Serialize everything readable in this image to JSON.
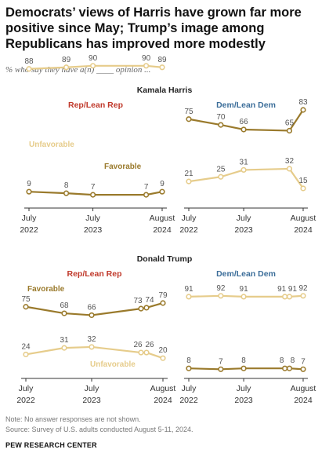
{
  "title": "Democrats’ views of Harris have grown far more positive since May; Trump’s image among Republicans has improved more modestly",
  "subtitle": "% who say they have a(n) ____ opinion ...",
  "note": "Note: No answer responses are not shown.",
  "source": "Source: Survey of U.S. adults conducted August 5-11, 2024.",
  "credit": "PEW RESEARCH CENTER",
  "colors": {
    "favorable": "#9a7a2c",
    "unfavorable": "#e6cc8b",
    "rep_label": "#c0392b",
    "dem_label": "#3c6e9a",
    "axis": "#333333"
  },
  "chart_data": [
    {
      "type": "line",
      "section": "Kamala Harris",
      "panel": "Rep/Lean Rep",
      "x": [
        "2022-07",
        "2023-02",
        "2023-07",
        "2024-05",
        "2024-08"
      ],
      "tick_labels": [
        [
          "July",
          "2022"
        ],
        [
          "July",
          "2023"
        ],
        [
          "August",
          "2024"
        ]
      ],
      "series": [
        {
          "name": "Unfavorable",
          "values": [
            88,
            89,
            90,
            90,
            89
          ]
        },
        {
          "name": "Favorable",
          "values": [
            9,
            8,
            7,
            7,
            9
          ]
        }
      ],
      "ylim": [
        0,
        100
      ]
    },
    {
      "type": "line",
      "section": "Kamala Harris",
      "panel": "Dem/Lean Dem",
      "x": [
        "2022-07",
        "2023-02",
        "2023-07",
        "2024-05",
        "2024-08"
      ],
      "tick_labels": [
        [
          "July",
          "2022"
        ],
        [
          "July",
          "2023"
        ],
        [
          "August",
          "2024"
        ]
      ],
      "series": [
        {
          "name": "Favorable",
          "values": [
            75,
            70,
            66,
            65,
            83
          ]
        },
        {
          "name": "Unfavorable",
          "values": [
            21,
            25,
            31,
            32,
            15
          ]
        }
      ],
      "ylim": [
        0,
        100
      ]
    },
    {
      "type": "line",
      "section": "Donald Trump",
      "panel": "Rep/Lean Rep",
      "x": [
        "2022-07",
        "2023-02",
        "2023-07",
        "2024-04",
        "2024-05",
        "2024-08"
      ],
      "tick_labels": [
        [
          "July",
          "2022"
        ],
        [
          "July",
          "2023"
        ],
        [
          "August",
          "2024"
        ]
      ],
      "series": [
        {
          "name": "Favorable",
          "values": [
            75,
            68,
            66,
            73,
            74,
            79
          ]
        },
        {
          "name": "Unfavorable",
          "values": [
            24,
            31,
            32,
            26,
            26,
            20
          ]
        }
      ],
      "ylim": [
        0,
        100
      ]
    },
    {
      "type": "line",
      "section": "Donald Trump",
      "panel": "Dem/Lean Dem",
      "x": [
        "2022-07",
        "2023-02",
        "2023-07",
        "2024-04",
        "2024-05",
        "2024-08"
      ],
      "tick_labels": [
        [
          "July",
          "2022"
        ],
        [
          "July",
          "2023"
        ],
        [
          "August",
          "2024"
        ]
      ],
      "series": [
        {
          "name": "Unfavorable",
          "values": [
            91,
            92,
            91,
            91,
            91,
            92
          ]
        },
        {
          "name": "Favorable",
          "values": [
            8,
            7,
            8,
            8,
            8,
            7
          ]
        }
      ],
      "ylim": [
        0,
        100
      ]
    }
  ]
}
